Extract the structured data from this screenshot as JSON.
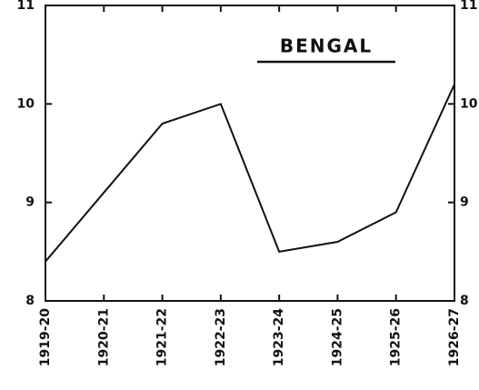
{
  "chart_data": {
    "type": "line",
    "title": "BENGAL",
    "categories": [
      "1919-20",
      "1920-21",
      "1921-22",
      "1922-23",
      "1923-24",
      "1924-25",
      "1925-26",
      "1926-27"
    ],
    "values": [
      8.4,
      9.1,
      9.8,
      10.0,
      8.5,
      8.6,
      8.9,
      10.2
    ],
    "color": "#111111",
    "ylim": [
      8,
      11
    ],
    "yticks": [
      8,
      9,
      10,
      11
    ],
    "y2lim": [
      8,
      11
    ],
    "y2ticks": [
      8,
      9,
      10,
      11
    ],
    "grid": false
  }
}
